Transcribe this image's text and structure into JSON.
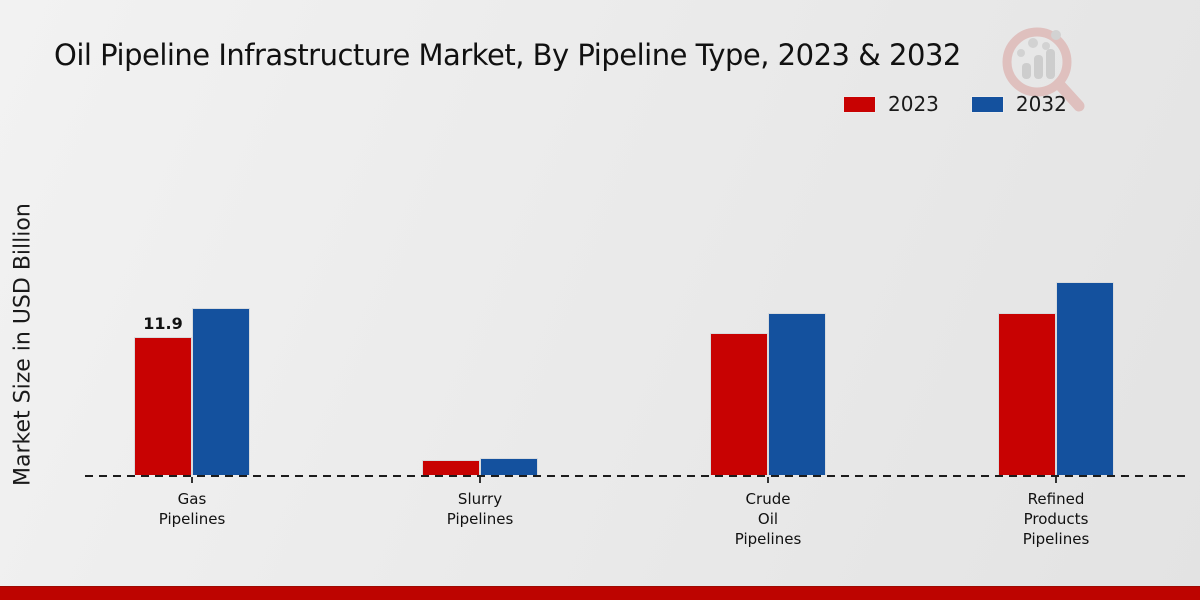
{
  "page": {
    "title": "Oil Pipeline Infrastructure Market, By Pipeline Type, 2023 & 2032",
    "ylabel": "Market Size in USD Billion"
  },
  "colors": {
    "series_2023_red": "#c80202",
    "series_2032_blue": "#14519e",
    "footer_accent_red": "#bd0400",
    "axis_line": "#1c1c1c",
    "text": "#111111"
  },
  "legend": {
    "position": "top-right",
    "items": [
      {
        "label": "2023",
        "color": "#c80202"
      },
      {
        "label": "2032",
        "color": "#14519e"
      }
    ]
  },
  "watermark": {
    "description": "magnifying-glass logo with bar chart and rising trend line"
  },
  "chart_data": {
    "type": "bar",
    "title": "Oil Pipeline Infrastructure Market, By Pipeline Type, 2023 & 2032",
    "xlabel": "",
    "ylabel": "Market Size in USD Billion",
    "categories": [
      "Gas\nPipelines",
      "Slurry\nPipelines",
      "Crude\nOil\nPipelines",
      "Refined\nProducts\nPipelines"
    ],
    "series": [
      {
        "name": "2023",
        "color": "#c80202",
        "values": [
          11.9,
          1.3,
          12.2,
          14.0
        ]
      },
      {
        "name": "2032",
        "color": "#14519e",
        "values": [
          14.4,
          1.5,
          14.0,
          16.6
        ]
      }
    ],
    "annotations": [
      {
        "series": 0,
        "category": 0,
        "text": "11.9"
      }
    ],
    "ylim": [
      0,
      17
    ],
    "grid": false,
    "y_axis_ticks_visible": false,
    "baseline_style": "dashed",
    "legend_position": "top-right"
  }
}
